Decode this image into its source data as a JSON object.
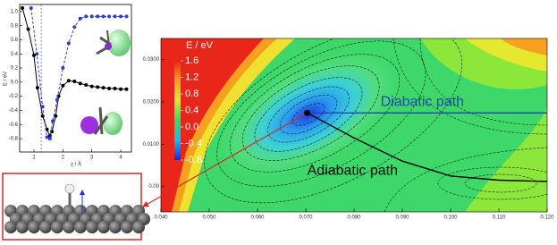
{
  "chart_data": [
    {
      "type": "line",
      "x_label": "z / Å",
      "y_label": "E / eV",
      "xlim": [
        0.505,
        4.37
      ],
      "ylim": [
        -0.99,
        1.1
      ],
      "xticks": [
        1,
        2,
        3,
        4
      ],
      "yticks": [
        -0.8,
        -0.6,
        -0.4,
        -0.2,
        {
          "value": 0,
          "label": "0.0"
        },
        0.2,
        0.4,
        0.6,
        0.8,
        {
          "value": 1,
          "label": "1.0"
        }
      ],
      "vline": 1.25,
      "series": [
        {
          "color": "#000000",
          "style": "solid",
          "x": [
            0.6,
            0.8,
            1.0,
            1.12,
            1.3,
            1.45,
            1.55,
            1.62,
            1.75,
            1.85,
            2.0,
            2.2,
            2.4,
            2.6,
            2.8,
            3.0,
            3.2,
            3.4,
            3.6,
            3.8,
            4.0,
            4.2
          ],
          "values": [
            1.05,
            0.75,
            0.38,
            -0.08,
            -0.48,
            -0.67,
            -0.76,
            -0.7,
            -0.48,
            -0.2,
            -0.05,
            0.02,
            0.01,
            -0.02,
            -0.04,
            -0.06,
            -0.07,
            -0.08,
            -0.09,
            -0.09,
            -0.1,
            -0.1
          ]
        },
        {
          "color": "#2b3fc8",
          "style": "dashed",
          "x": [
            0.9,
            1.1,
            1.3,
            1.45,
            1.55,
            1.65,
            1.8,
            2.0,
            2.2,
            2.4,
            2.6,
            2.8,
            3.0,
            3.2,
            3.4,
            3.6,
            3.8,
            4.0,
            4.2
          ],
          "values": [
            1.05,
            0.4,
            -0.35,
            -0.78,
            -0.8,
            -0.55,
            -0.25,
            0.2,
            0.55,
            0.78,
            0.9,
            0.93,
            0.93,
            0.93,
            0.93,
            0.93,
            0.93,
            0.93,
            0.93
          ]
        }
      ]
    },
    {
      "type": "contour",
      "colorbar_label": "E / eV",
      "clim": [
        -0.8,
        1.6
      ],
      "colorbar_ticks": [
        1.6,
        1.2,
        0.8,
        0.4,
        {
          "value": 0,
          "label": "0.0"
        },
        -0.4,
        -0.8
      ],
      "xlim": [
        0.04,
        0.12
      ],
      "ylim": [
        -0.006,
        0.035
      ],
      "xticks": [
        {
          "value": 0.04,
          "label": "0.040"
        },
        {
          "value": 0.05,
          "label": "0.050"
        },
        {
          "value": 0.06,
          "label": "0.060"
        },
        {
          "value": 0.07,
          "label": "0.070"
        },
        {
          "value": 0.08,
          "label": "0.080"
        },
        {
          "value": 0.09,
          "label": "0.090"
        },
        {
          "value": 0.1,
          "label": "0.100"
        },
        {
          "value": 0.11,
          "label": "0.110"
        },
        {
          "value": 0.12,
          "label": "0.120"
        }
      ],
      "yticks": [
        {
          "value": 0,
          "label": "0.00"
        },
        {
          "value": 0.01,
          "label": "0.0100"
        },
        {
          "value": 0.02,
          "label": "0.0200"
        },
        {
          "value": 0.03,
          "label": "0.0300"
        }
      ],
      "series": [
        {
          "name": "Diabatic path",
          "color": "#1f3fbf",
          "x": [
            0.0703,
            0.12
          ],
          "values": [
            0.0174,
            0.0174
          ]
        },
        {
          "name": "Adiabatic path",
          "color": "#000000",
          "x": [
            0.0703,
            0.08,
            0.09,
            0.1,
            0.11,
            0.12
          ],
          "values": [
            0.0174,
            0.0115,
            0.006,
            0.0025,
            0.0015,
            0.0012
          ]
        }
      ]
    }
  ]
}
